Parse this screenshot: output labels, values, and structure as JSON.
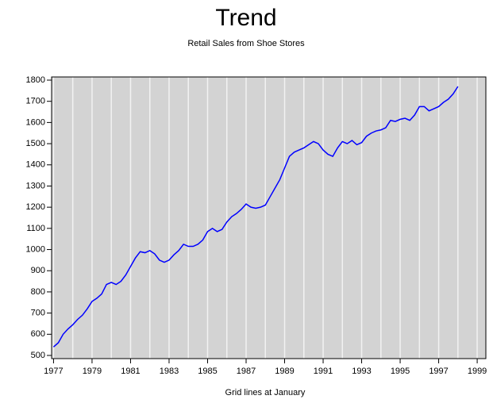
{
  "chart_data": {
    "type": "line",
    "title": "Trend",
    "subtitle": "Retail Sales from Shoe Stores",
    "x_label": "Grid lines at January",
    "x": [
      1977,
      1977.25,
      1977.5,
      1977.75,
      1978,
      1978.25,
      1978.5,
      1978.75,
      1979,
      1979.25,
      1979.5,
      1979.75,
      1980,
      1980.25,
      1980.5,
      1980.75,
      1981,
      1981.25,
      1981.5,
      1981.75,
      1982,
      1982.25,
      1982.5,
      1982.75,
      1983,
      1983.25,
      1983.5,
      1983.75,
      1984,
      1984.25,
      1984.5,
      1984.75,
      1985,
      1985.25,
      1985.5,
      1985.75,
      1986,
      1986.25,
      1986.5,
      1986.75,
      1987,
      1987.25,
      1987.5,
      1987.75,
      1988,
      1988.25,
      1988.5,
      1988.75,
      1989,
      1989.25,
      1989.5,
      1989.75,
      1990,
      1990.25,
      1990.5,
      1990.75,
      1991,
      1991.25,
      1991.5,
      1991.75,
      1992,
      1992.25,
      1992.5,
      1992.75,
      1993,
      1993.25,
      1993.5,
      1993.75,
      1994,
      1994.25,
      1994.5,
      1994.75,
      1995,
      1995.25,
      1995.5,
      1995.75,
      1996,
      1996.25,
      1996.5,
      1996.75,
      1997,
      1997.25,
      1997.5,
      1997.75,
      1998
    ],
    "series": [
      {
        "color": "#0000ff",
        "values": [
          540,
          560,
          600,
          625,
          645,
          670,
          690,
          720,
          755,
          770,
          790,
          835,
          845,
          835,
          850,
          880,
          920,
          960,
          990,
          985,
          995,
          980,
          950,
          940,
          950,
          975,
          995,
          1025,
          1015,
          1015,
          1025,
          1045,
          1085,
          1100,
          1085,
          1095,
          1130,
          1155,
          1170,
          1190,
          1215,
          1200,
          1195,
          1200,
          1210,
          1250,
          1290,
          1330,
          1385,
          1440,
          1460,
          1470,
          1480,
          1495,
          1510,
          1500,
          1470,
          1450,
          1440,
          1480,
          1510,
          1500,
          1515,
          1495,
          1505,
          1535,
          1550,
          1560,
          1565,
          1575,
          1610,
          1605,
          1615,
          1620,
          1610,
          1635,
          1675,
          1675,
          1655,
          1665,
          1675,
          1695,
          1710,
          1735,
          1770
        ]
      }
    ],
    "xlim": [
      1976.9,
      1999.45
    ],
    "xticks": [
      1977,
      1979,
      1981,
      1983,
      1985,
      1987,
      1989,
      1991,
      1993,
      1995,
      1997,
      1999
    ],
    "ylim": [
      485,
      1815
    ],
    "yticks": [
      500,
      600,
      700,
      800,
      900,
      1000,
      1100,
      1200,
      1300,
      1400,
      1500,
      1600,
      1700,
      1800
    ],
    "xgrid": [
      1977,
      1978,
      1979,
      1980,
      1981,
      1982,
      1983,
      1984,
      1985,
      1986,
      1987,
      1988,
      1989,
      1990,
      1991,
      1992,
      1993,
      1994,
      1995,
      1996,
      1997,
      1998,
      1999
    ],
    "background": "#d3d3d3",
    "grid_color": "#f2f2f2"
  }
}
